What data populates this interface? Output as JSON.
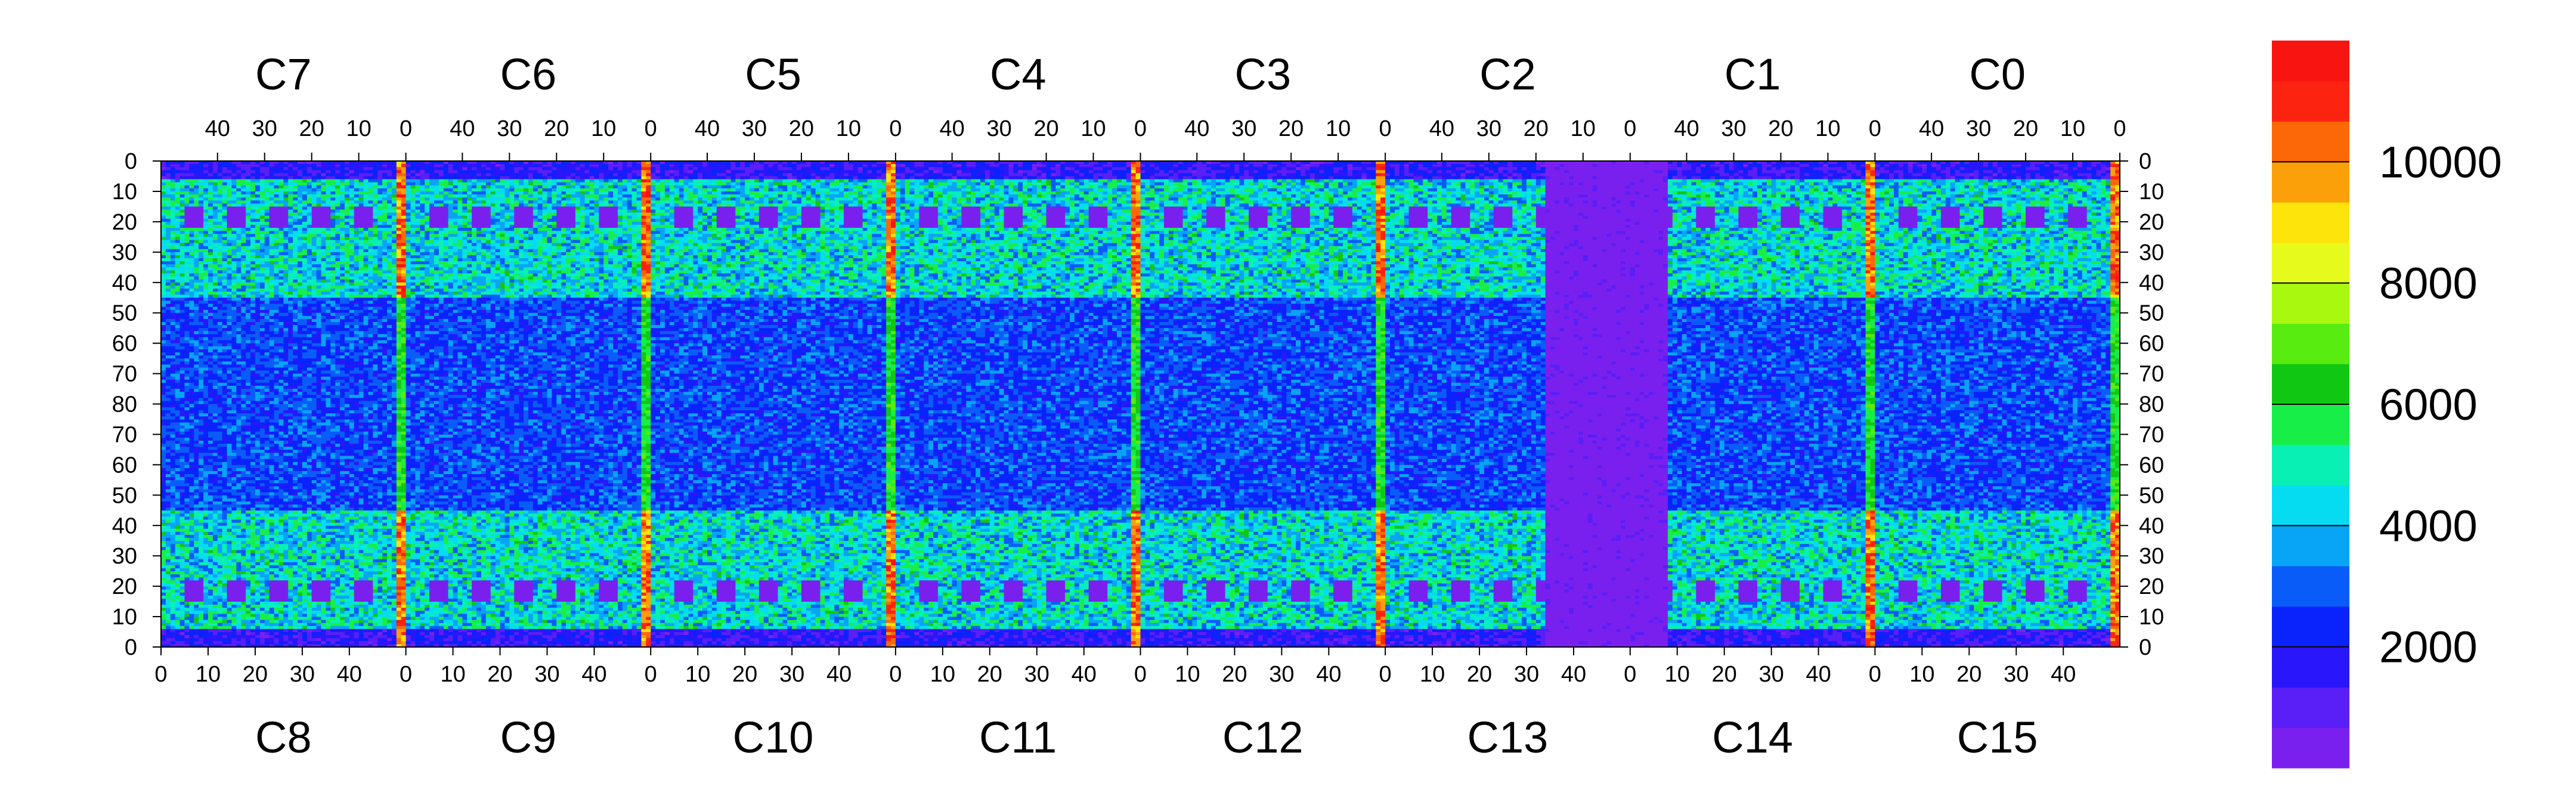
{
  "chart_data": {
    "type": "heatmap",
    "title": "",
    "top_chips": [
      "C7",
      "C6",
      "C5",
      "C4",
      "C3",
      "C2",
      "C1",
      "C0"
    ],
    "bottom_chips": [
      "C8",
      "C9",
      "C10",
      "C11",
      "C12",
      "C13",
      "C14",
      "C15"
    ],
    "top_x_ticks": [
      "40",
      "30",
      "20",
      "10",
      "0"
    ],
    "bottom_x_ticks": [
      "0",
      "10",
      "20",
      "30",
      "40"
    ],
    "top_x_tick_values": [
      40,
      30,
      20,
      10,
      0
    ],
    "bottom_x_tick_values": [
      0,
      10,
      20,
      30,
      40
    ],
    "y_ticks": [
      "0",
      "10",
      "20",
      "30",
      "40",
      "50",
      "60",
      "70",
      "80",
      "70",
      "60",
      "50",
      "40",
      "30",
      "20",
      "10",
      "0"
    ],
    "columns_per_chip": 52,
    "rows_per_half": 80,
    "colorbar": {
      "min": 0,
      "max": 12000,
      "tick_labels": [
        "2000",
        "4000",
        "6000",
        "8000",
        "10000"
      ],
      "tick_values": [
        2000,
        4000,
        6000,
        8000,
        10000
      ],
      "colors": [
        "#7a20ee",
        "#5a1ef6",
        "#2a16fb",
        "#0a22fb",
        "#0a5cf8",
        "#08a4f6",
        "#05dcf2",
        "#08f0b4",
        "#18ee48",
        "#10c814",
        "#58ec10",
        "#a8f810",
        "#e6fb1c",
        "#fde40a",
        "#fca00a",
        "#fc6808",
        "#fc2410",
        "#f81410"
      ]
    },
    "value_summary": {
      "background_typical": 4500,
      "chip_boundary_columns": 10500,
      "central_dead_region": 300,
      "dark_pads": 600
    }
  }
}
